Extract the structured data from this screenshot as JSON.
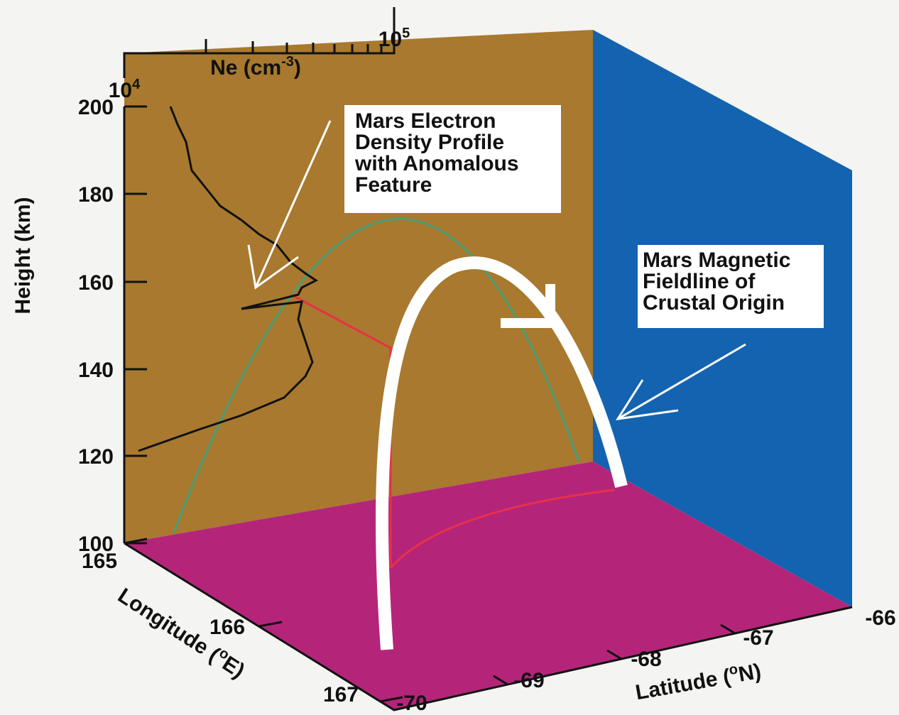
{
  "ne_axis": {
    "title": [
      "Ne (cm",
      "-3",
      ")"
    ],
    "min": [
      "10",
      "4"
    ],
    "max": [
      "10",
      "5"
    ]
  },
  "height_axis": {
    "title": "Height (km)",
    "ticks": [
      200,
      180,
      160,
      140,
      120,
      100
    ]
  },
  "longitude_axis": {
    "title": [
      "Longitude (",
      "o",
      "E)"
    ],
    "ticks": [
      165,
      166,
      167
    ]
  },
  "latitude_axis": {
    "title": [
      "Latitude (",
      "o",
      "N)"
    ],
    "ticks": [
      -70,
      -69,
      -68,
      -67,
      -66
    ]
  },
  "annotations": [
    {
      "lines": [
        "Mars Electron",
        "Density Profile",
        "with Anomalous",
        "Feature"
      ]
    },
    {
      "lines": [
        "Mars Magnetic",
        "Fieldline of",
        "Crustal Origin"
      ]
    }
  ]
}
